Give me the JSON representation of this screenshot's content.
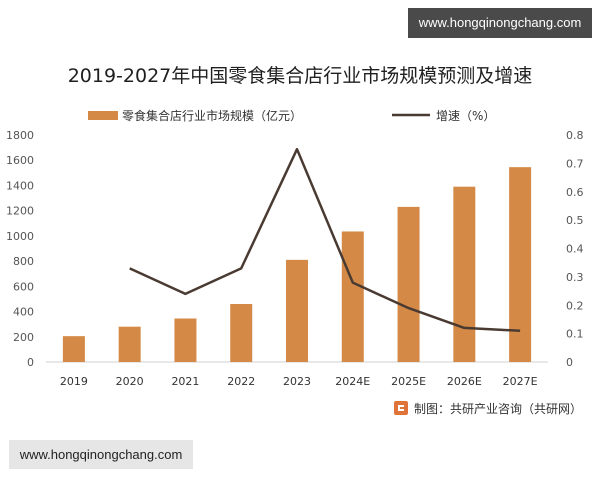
{
  "watermarks": {
    "top": "www.hongqinongchang.com",
    "bottom": "www.hongqinongchang.com"
  },
  "source": {
    "text": "制图：共研产业咨询（共研网）",
    "logo_icon": "gongyan-logo-icon"
  },
  "colors": {
    "bar": "#d48a46",
    "line": "#4a3b32",
    "axis": "#d0d0d0",
    "logo": "#e0733a"
  },
  "chart_data": {
    "type": "bar",
    "title": "2019-2027年中国零食集合店行业市场规模预测及增速",
    "categories": [
      "2019",
      "2020",
      "2021",
      "2022",
      "2023",
      "2024E",
      "2025E",
      "2026E",
      "2027E"
    ],
    "series": [
      {
        "name": "零食集合店行业市场规模（亿元）",
        "type": "bar",
        "axis": "left",
        "values": [
          205,
          280,
          345,
          460,
          810,
          1035,
          1230,
          1390,
          1545
        ]
      },
      {
        "name": "增速（%）",
        "type": "line",
        "axis": "right",
        "values": [
          null,
          0.33,
          0.24,
          0.33,
          0.75,
          0.28,
          0.19,
          0.12,
          0.11
        ]
      }
    ],
    "y_left": {
      "min": 0,
      "max": 1800,
      "ticks": [
        0,
        200,
        400,
        600,
        800,
        1000,
        1200,
        1400,
        1600,
        1800
      ]
    },
    "y_right": {
      "min": 0,
      "max": 0.8,
      "ticks": [
        "0",
        "0.1",
        "0.2",
        "0.3",
        "0.4",
        "0.5",
        "0.6",
        "0.7",
        "0.8"
      ]
    },
    "legend_position": "top",
    "grid": false
  }
}
